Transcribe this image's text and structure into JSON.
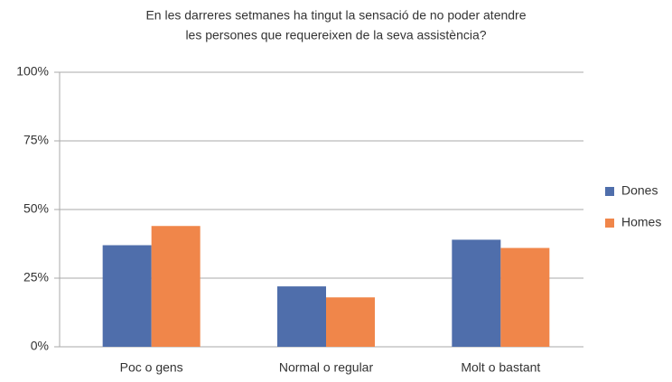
{
  "chart_data": {
    "type": "bar",
    "title": [
      "En les darreres setmanes ha tingut la sensació de no poder atendre",
      "les persones que requereixen de la seva assistència?"
    ],
    "categories": [
      "Poc o gens",
      "Normal o regular",
      "Molt o bastant"
    ],
    "series": [
      {
        "name": "Dones",
        "color": "#4f6eab",
        "values": [
          37,
          22,
          39
        ]
      },
      {
        "name": "Homes",
        "color": "#f0864a",
        "values": [
          44,
          18,
          36
        ]
      }
    ],
    "ylim": [
      0,
      100
    ],
    "yticks": [
      {
        "value": 0,
        "label": "0%"
      },
      {
        "value": 25,
        "label": "25%"
      },
      {
        "value": 50,
        "label": "50%"
      },
      {
        "value": 75,
        "label": "75%"
      },
      {
        "value": 100,
        "label": "100%"
      }
    ],
    "grid": true,
    "legend": "right"
  }
}
